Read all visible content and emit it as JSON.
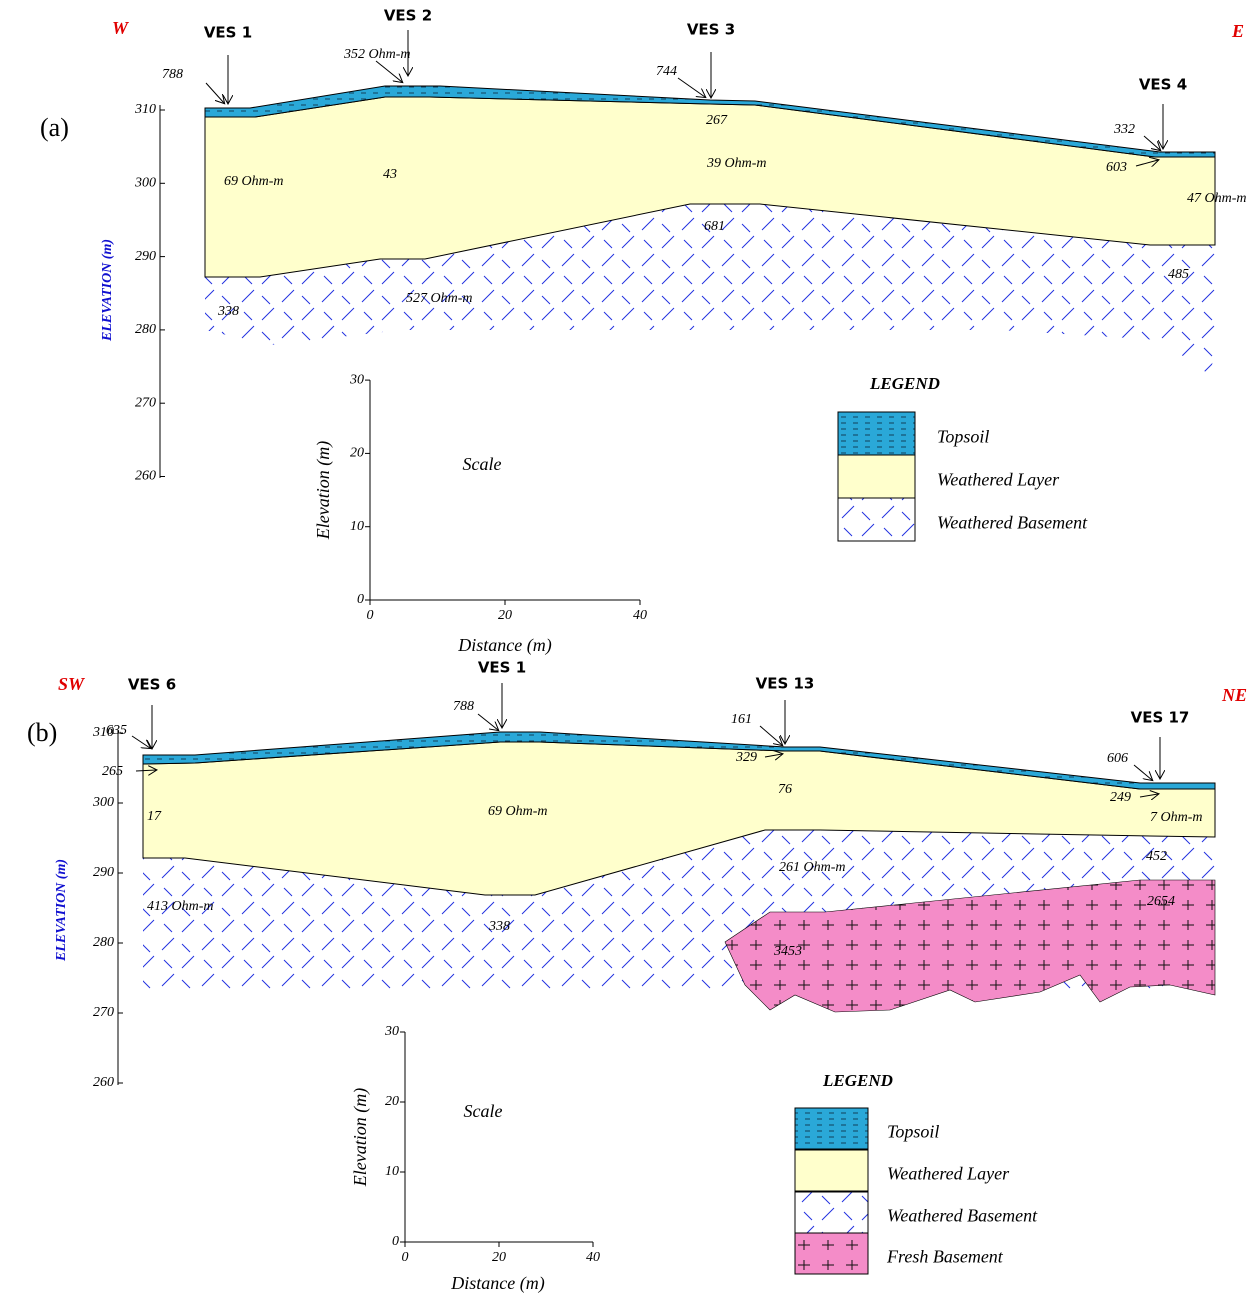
{
  "panel_a": {
    "label": "(a)",
    "west": "W",
    "east": "E",
    "axis_title": "ELEVATION (m)",
    "elevation_ticks": [
      310,
      300,
      290,
      280,
      270,
      260
    ],
    "ves": [
      "VES 1",
      "VES 2",
      "VES 3",
      "VES 4"
    ],
    "resistivities": [
      "788",
      "352 Ohm-m",
      "744",
      "332",
      "603",
      "69 Ohm-m",
      "43",
      "267",
      "39  Ohm-m",
      "47  Ohm-m",
      "681",
      "338",
      "527  Ohm-m",
      "485"
    ],
    "scale": {
      "title": "Scale",
      "y_title": "Elevation (m)",
      "x_title": "Distance (m)",
      "y_ticks": [
        0,
        10,
        20,
        30
      ],
      "x_ticks": [
        0,
        20,
        40
      ]
    },
    "legend": {
      "title": "LEGEND",
      "items": [
        "Topsoil",
        "Weathered Layer",
        "Weathered Basement"
      ]
    }
  },
  "panel_b": {
    "label": "(b)",
    "west": "SW",
    "east": "NE",
    "axis_title": "ELEVATION (m)",
    "elevation_ticks": [
      310,
      300,
      290,
      280,
      270,
      260
    ],
    "ves": [
      "VES 6",
      "VES 1",
      "VES 13",
      "VES 17"
    ],
    "resistivities": [
      "635",
      "265",
      "17",
      "788",
      "69  Ohm-m",
      "161",
      "329",
      "76",
      "606",
      "249",
      "7  Ohm-m",
      "261   Ohm-m",
      "452",
      "413   Ohm-m",
      "338",
      "3453",
      "2654"
    ],
    "scale": {
      "title": "Scale",
      "y_title": "Elevation (m)",
      "x_title": "Distance (m)",
      "y_ticks": [
        0,
        10,
        20,
        30
      ],
      "x_ticks": [
        0,
        20,
        40
      ]
    },
    "legend": {
      "title": "LEGEND",
      "items": [
        "Topsoil",
        "Weathered Layer",
        "Weathered Basement",
        "Fresh Basement"
      ]
    }
  }
}
